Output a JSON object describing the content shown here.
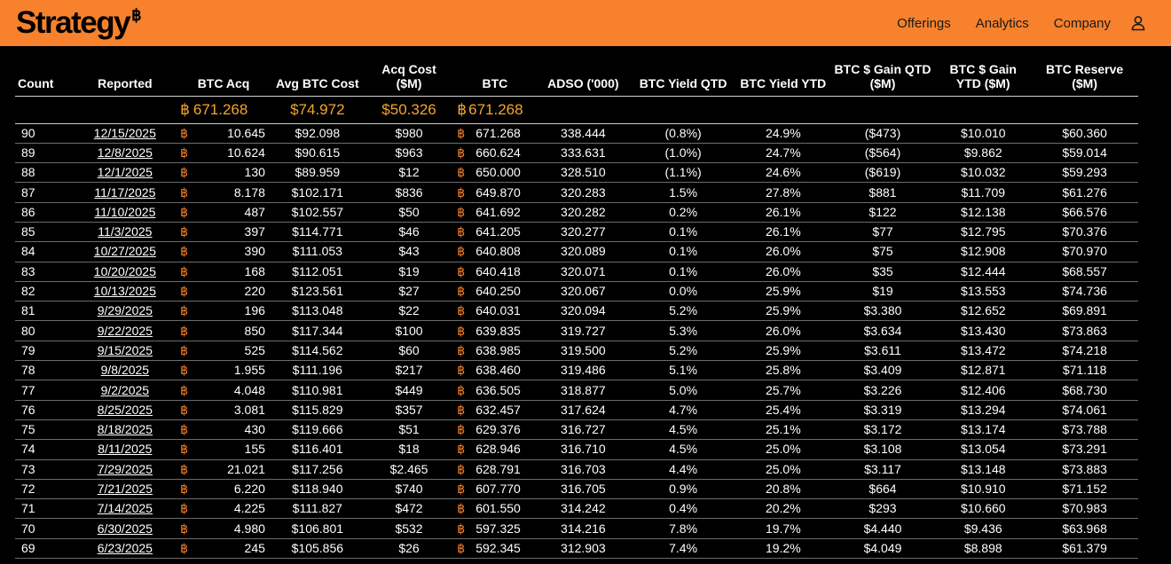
{
  "header": {
    "logo_text": "Strategy",
    "logo_mark": "฿",
    "nav": [
      "Offerings",
      "Analytics",
      "Company"
    ],
    "user_icon": "user-icon",
    "accent_color": "#f7812c"
  },
  "columns": {
    "count": "Count",
    "reported": "Reported",
    "btc_acq": "BTC Acq",
    "avg_cost": "Avg BTC Cost",
    "acq_cost": "Acq Cost ($M)",
    "btc": "BTC",
    "adso": "ADSO ('000)",
    "yield_qtd": "BTC Yield QTD",
    "yield_ytd": "BTC Yield YTD",
    "gain_qtd": "BTC $ Gain QTD ($M)",
    "gain_ytd": "BTC $ Gain YTD ($M)",
    "reserve": "BTC Reserve ($M)"
  },
  "totals": {
    "btc_symbol": "฿",
    "btc_acq": "671.268",
    "avg_cost": "$74.972",
    "acq_cost": "$50.326",
    "btc": "671.268"
  },
  "rows": [
    {
      "count": "90",
      "reported": "12/15/2025",
      "btc_acq": "10.645",
      "avg_cost": "$92.098",
      "acq_cost": "$980",
      "btc": "671.268",
      "adso": "338.444",
      "yield_qtd": "(0.8%)",
      "yield_ytd": "24.9%",
      "gain_qtd": "($473)",
      "gain_ytd": "$10.010",
      "reserve": "$60.360"
    },
    {
      "count": "89",
      "reported": "12/8/2025",
      "btc_acq": "10.624",
      "avg_cost": "$90.615",
      "acq_cost": "$963",
      "btc": "660.624",
      "adso": "333.631",
      "yield_qtd": "(1.0%)",
      "yield_ytd": "24.7%",
      "gain_qtd": "($564)",
      "gain_ytd": "$9.862",
      "reserve": "$59.014"
    },
    {
      "count": "88",
      "reported": "12/1/2025",
      "btc_acq": "130",
      "avg_cost": "$89.959",
      "acq_cost": "$12",
      "btc": "650.000",
      "adso": "328.510",
      "yield_qtd": "(1.1%)",
      "yield_ytd": "24.6%",
      "gain_qtd": "($619)",
      "gain_ytd": "$10.032",
      "reserve": "$59.293"
    },
    {
      "count": "87",
      "reported": "11/17/2025",
      "btc_acq": "8.178",
      "avg_cost": "$102.171",
      "acq_cost": "$836",
      "btc": "649.870",
      "adso": "320.283",
      "yield_qtd": "1.5%",
      "yield_ytd": "27.8%",
      "gain_qtd": "$881",
      "gain_ytd": "$11.709",
      "reserve": "$61.276"
    },
    {
      "count": "86",
      "reported": "11/10/2025",
      "btc_acq": "487",
      "avg_cost": "$102.557",
      "acq_cost": "$50",
      "btc": "641.692",
      "adso": "320.282",
      "yield_qtd": "0.2%",
      "yield_ytd": "26.1%",
      "gain_qtd": "$122",
      "gain_ytd": "$12.138",
      "reserve": "$66.576"
    },
    {
      "count": "85",
      "reported": "11/3/2025",
      "btc_acq": "397",
      "avg_cost": "$114.771",
      "acq_cost": "$46",
      "btc": "641.205",
      "adso": "320.277",
      "yield_qtd": "0.1%",
      "yield_ytd": "26.1%",
      "gain_qtd": "$77",
      "gain_ytd": "$12.795",
      "reserve": "$70.376"
    },
    {
      "count": "84",
      "reported": "10/27/2025",
      "btc_acq": "390",
      "avg_cost": "$111.053",
      "acq_cost": "$43",
      "btc": "640.808",
      "adso": "320.089",
      "yield_qtd": "0.1%",
      "yield_ytd": "26.0%",
      "gain_qtd": "$75",
      "gain_ytd": "$12.908",
      "reserve": "$70.970"
    },
    {
      "count": "83",
      "reported": "10/20/2025",
      "btc_acq": "168",
      "avg_cost": "$112.051",
      "acq_cost": "$19",
      "btc": "640.418",
      "adso": "320.071",
      "yield_qtd": "0.1%",
      "yield_ytd": "26.0%",
      "gain_qtd": "$35",
      "gain_ytd": "$12.444",
      "reserve": "$68.557"
    },
    {
      "count": "82",
      "reported": "10/13/2025",
      "btc_acq": "220",
      "avg_cost": "$123.561",
      "acq_cost": "$27",
      "btc": "640.250",
      "adso": "320.067",
      "yield_qtd": "0.0%",
      "yield_ytd": "25.9%",
      "gain_qtd": "$19",
      "gain_ytd": "$13.553",
      "reserve": "$74.736"
    },
    {
      "count": "81",
      "reported": "9/29/2025",
      "btc_acq": "196",
      "avg_cost": "$113.048",
      "acq_cost": "$22",
      "btc": "640.031",
      "adso": "320.094",
      "yield_qtd": "5.2%",
      "yield_ytd": "25.9%",
      "gain_qtd": "$3.380",
      "gain_ytd": "$12.652",
      "reserve": "$69.891"
    },
    {
      "count": "80",
      "reported": "9/22/2025",
      "btc_acq": "850",
      "avg_cost": "$117.344",
      "acq_cost": "$100",
      "btc": "639.835",
      "adso": "319.727",
      "yield_qtd": "5.3%",
      "yield_ytd": "26.0%",
      "gain_qtd": "$3.634",
      "gain_ytd": "$13.430",
      "reserve": "$73.863"
    },
    {
      "count": "79",
      "reported": "9/15/2025",
      "btc_acq": "525",
      "avg_cost": "$114.562",
      "acq_cost": "$60",
      "btc": "638.985",
      "adso": "319.500",
      "yield_qtd": "5.2%",
      "yield_ytd": "25.9%",
      "gain_qtd": "$3.611",
      "gain_ytd": "$13.472",
      "reserve": "$74.218"
    },
    {
      "count": "78",
      "reported": "9/8/2025",
      "btc_acq": "1.955",
      "avg_cost": "$111.196",
      "acq_cost": "$217",
      "btc": "638.460",
      "adso": "319.486",
      "yield_qtd": "5.1%",
      "yield_ytd": "25.8%",
      "gain_qtd": "$3.409",
      "gain_ytd": "$12.871",
      "reserve": "$71.118"
    },
    {
      "count": "77",
      "reported": "9/2/2025",
      "btc_acq": "4.048",
      "avg_cost": "$110.981",
      "acq_cost": "$449",
      "btc": "636.505",
      "adso": "318.877",
      "yield_qtd": "5.0%",
      "yield_ytd": "25.7%",
      "gain_qtd": "$3.226",
      "gain_ytd": "$12.406",
      "reserve": "$68.730"
    },
    {
      "count": "76",
      "reported": "8/25/2025",
      "btc_acq": "3.081",
      "avg_cost": "$115.829",
      "acq_cost": "$357",
      "btc": "632.457",
      "adso": "317.624",
      "yield_qtd": "4.7%",
      "yield_ytd": "25.4%",
      "gain_qtd": "$3.319",
      "gain_ytd": "$13.294",
      "reserve": "$74.061"
    },
    {
      "count": "75",
      "reported": "8/18/2025",
      "btc_acq": "430",
      "avg_cost": "$119.666",
      "acq_cost": "$51",
      "btc": "629.376",
      "adso": "316.727",
      "yield_qtd": "4.5%",
      "yield_ytd": "25.1%",
      "gain_qtd": "$3.172",
      "gain_ytd": "$13.174",
      "reserve": "$73.788"
    },
    {
      "count": "74",
      "reported": "8/11/2025",
      "btc_acq": "155",
      "avg_cost": "$116.401",
      "acq_cost": "$18",
      "btc": "628.946",
      "adso": "316.710",
      "yield_qtd": "4.5%",
      "yield_ytd": "25.0%",
      "gain_qtd": "$3.108",
      "gain_ytd": "$13.054",
      "reserve": "$73.291"
    },
    {
      "count": "73",
      "reported": "7/29/2025",
      "btc_acq": "21.021",
      "avg_cost": "$117.256",
      "acq_cost": "$2.465",
      "btc": "628.791",
      "adso": "316.703",
      "yield_qtd": "4.4%",
      "yield_ytd": "25.0%",
      "gain_qtd": "$3.117",
      "gain_ytd": "$13.148",
      "reserve": "$73.883"
    },
    {
      "count": "72",
      "reported": "7/21/2025",
      "btc_acq": "6.220",
      "avg_cost": "$118.940",
      "acq_cost": "$740",
      "btc": "607.770",
      "adso": "316.705",
      "yield_qtd": "0.9%",
      "yield_ytd": "20.8%",
      "gain_qtd": "$664",
      "gain_ytd": "$10.910",
      "reserve": "$71.152"
    },
    {
      "count": "71",
      "reported": "7/14/2025",
      "btc_acq": "4.225",
      "avg_cost": "$111.827",
      "acq_cost": "$472",
      "btc": "601.550",
      "adso": "314.242",
      "yield_qtd": "0.4%",
      "yield_ytd": "20.2%",
      "gain_qtd": "$293",
      "gain_ytd": "$10.660",
      "reserve": "$70.983"
    },
    {
      "count": "70",
      "reported": "6/30/2025",
      "btc_acq": "4.980",
      "avg_cost": "$106.801",
      "acq_cost": "$532",
      "btc": "597.325",
      "adso": "314.216",
      "yield_qtd": "7.8%",
      "yield_ytd": "19.7%",
      "gain_qtd": "$4.440",
      "gain_ytd": "$9.436",
      "reserve": "$63.968"
    },
    {
      "count": "69",
      "reported": "6/23/2025",
      "btc_acq": "245",
      "avg_cost": "$105.856",
      "acq_cost": "$26",
      "btc": "592.345",
      "adso": "312.903",
      "yield_qtd": "7.4%",
      "yield_ytd": "19.2%",
      "gain_qtd": "$4.049",
      "gain_ytd": "$8.898",
      "reserve": "$61.379"
    }
  ]
}
